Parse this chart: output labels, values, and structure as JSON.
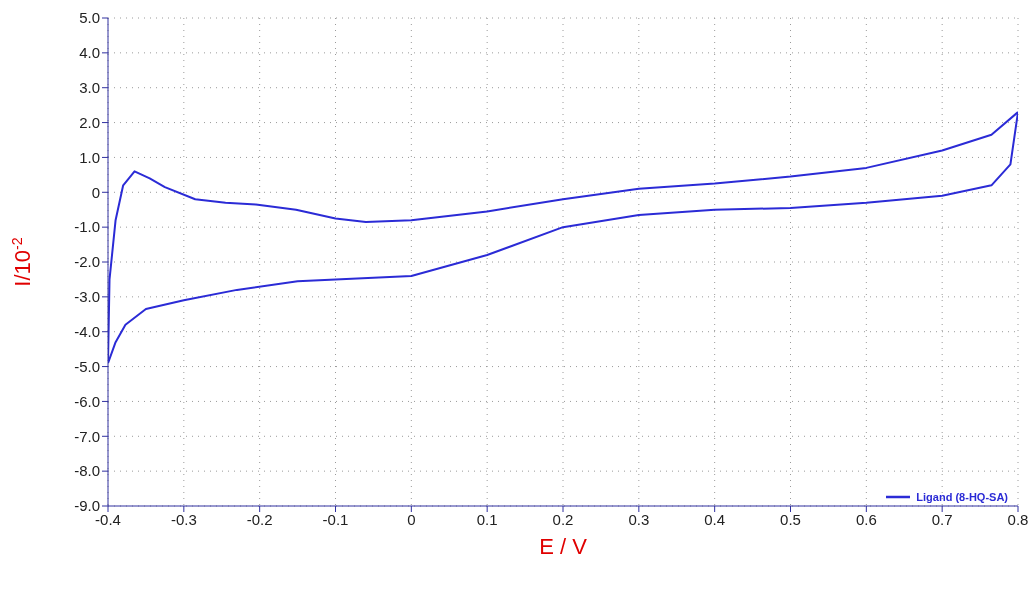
{
  "chart_data": {
    "type": "line",
    "xlabel": "E / V",
    "ylabel": "I/10$^{-2}$",
    "xlim": [
      -0.4,
      0.8
    ],
    "xticks": [
      -0.4,
      -0.3,
      -0.2,
      -0.1,
      0,
      0.1,
      0.2,
      0.3,
      0.4,
      0.5,
      0.6,
      0.7,
      0.8
    ],
    "ylim": [
      -9,
      5
    ],
    "yticks": [
      {
        "value": 5,
        "label": "5.0"
      },
      {
        "value": 4,
        "label": "4.0"
      },
      {
        "value": 3,
        "label": "3.0"
      },
      {
        "value": 2,
        "label": "2.0"
      },
      {
        "value": 1,
        "label": "1.0"
      },
      0,
      {
        "value": -1,
        "label": "-1.0"
      },
      {
        "value": -2,
        "label": "-2.0"
      },
      {
        "value": -3,
        "label": "-3.0"
      },
      {
        "value": -4,
        "label": "-4.0"
      },
      {
        "value": -5,
        "label": "-5.0"
      },
      {
        "value": -6,
        "label": "-6.0"
      },
      {
        "value": -7,
        "label": "-7.0"
      },
      {
        "value": -8,
        "label": "-8.0"
      },
      {
        "value": -9,
        "label": "-9.0"
      }
    ],
    "grid": true,
    "legend": "bottom right",
    "marker": "none",
    "line_style": "solid",
    "series": [
      {
        "name": "Ligand (8-HQ-SA)",
        "color": "#2b2bd6",
        "x": [
          -0.4,
          -0.398,
          -0.39,
          -0.38,
          -0.365,
          -0.345,
          -0.325,
          -0.285,
          -0.245,
          -0.205,
          -0.152,
          -0.1,
          -0.06,
          0,
          0.1,
          0.2,
          0.3,
          0.4,
          0.5,
          0.6,
          0.7,
          0.765,
          0.8
        ],
        "values": [
          -4.9,
          -2.5,
          -0.8,
          0.2,
          0.6,
          0.4,
          0.15,
          -0.2,
          -0.3,
          -0.35,
          -0.5,
          -0.75,
          -0.85,
          -0.8,
          -0.55,
          -0.2,
          0.1,
          0.25,
          0.45,
          0.7,
          1.2,
          1.65,
          2.3
        ]
      },
      {
        "color": "#2b2bd6",
        "x": [
          -0.4,
          -0.39,
          -0.377,
          -0.35,
          -0.3,
          -0.23,
          -0.15,
          -0.1,
          0,
          0.1,
          0.2,
          0.3,
          0.4,
          0.5,
          0.6,
          0.7,
          0.765,
          0.79,
          0.8
        ],
        "values": [
          -4.9,
          -4.3,
          -3.8,
          -3.35,
          -3.1,
          -2.8,
          -2.55,
          -2.5,
          -2.4,
          -1.8,
          -1.0,
          -0.65,
          -0.5,
          -0.45,
          -0.3,
          -0.1,
          0.2,
          0.8,
          2.3
        ]
      }
    ]
  }
}
